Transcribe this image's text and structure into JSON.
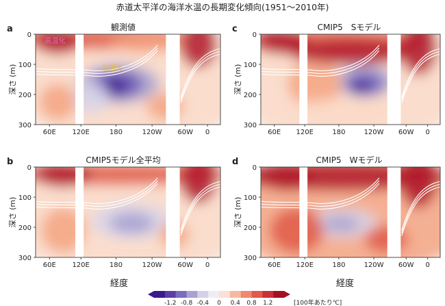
{
  "figure": {
    "title": "赤道太平洋の海洋水温の長期変化傾向(1951～2010年)",
    "ylabel": "深さ (m)",
    "xlabel": "経度"
  },
  "colors": {
    "warm_strong": "#b2182b",
    "warm_mid": "#e15a4a",
    "warm_light": "#f4a582",
    "warm_pale": "#fbd9c7",
    "neutral": "#f5f2f1",
    "cool_pale": "#d8d6ea",
    "cool_light": "#a8a2d2",
    "cool_mid": "#6a54b4",
    "cool_strong": "#3b1a8c",
    "isotherm": "#ffffff",
    "land_gap": "#ffffff"
  },
  "chart_data": [
    {
      "type": "heatmap",
      "panel": "a",
      "title": "観測値",
      "annotations": [
        {
          "text": "高温化",
          "color": "#e26fae"
        },
        {
          "text": "低温化",
          "color": "#f0c419"
        }
      ],
      "x_ticks": [
        "60E",
        "120E",
        "180",
        "120W",
        "60W",
        "0"
      ],
      "y_ticks": [
        "0",
        "100",
        "200",
        "300"
      ],
      "ylim": [
        300,
        0
      ],
      "grid": false
    },
    {
      "type": "heatmap",
      "panel": "c",
      "title": "CMIP5　Sモデル",
      "x_ticks": [
        "60E",
        "120E",
        "180",
        "120W",
        "60W",
        "0"
      ],
      "y_ticks": [
        "0",
        "100",
        "200",
        "300"
      ],
      "ylim": [
        300,
        0
      ],
      "grid": false
    },
    {
      "type": "heatmap",
      "panel": "b",
      "title": "CMIP5モデル全平均",
      "x_ticks": [
        "60E",
        "120E",
        "180",
        "120W",
        "60W",
        "0"
      ],
      "y_ticks": [
        "0",
        "100",
        "200",
        "300"
      ],
      "ylim": [
        300,
        0
      ],
      "grid": false
    },
    {
      "type": "heatmap",
      "panel": "d",
      "title": "CMIP5　Wモデル",
      "x_ticks": [
        "60E",
        "120E",
        "180",
        "120W",
        "60W",
        "0"
      ],
      "y_ticks": [
        "0",
        "100",
        "200",
        "300"
      ],
      "ylim": [
        300,
        0
      ],
      "grid": false
    }
  ],
  "colorbar": {
    "ticks": [
      "-1.2",
      "-0.8",
      "-0.4",
      "0",
      "0.4",
      "0.8",
      "1.2"
    ],
    "unit": "[100年あたり℃]",
    "colors": [
      "#3b1a8c",
      "#5a3fa6",
      "#7c6cbf",
      "#a8a2d2",
      "#d3d0e8",
      "#efedf4",
      "#fbe0d4",
      "#f6b9a0",
      "#ee8a6e",
      "#e15a4a",
      "#c8303a",
      "#a50f24"
    ]
  }
}
